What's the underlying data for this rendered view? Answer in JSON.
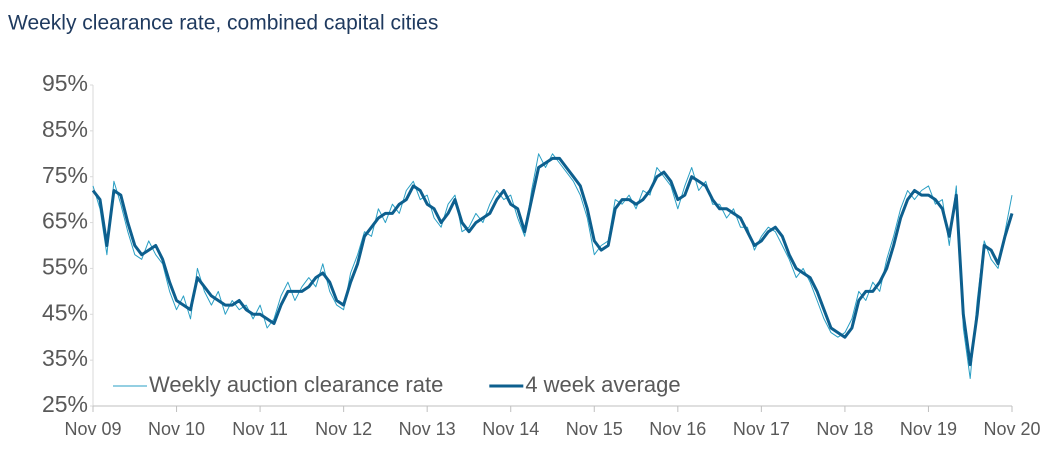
{
  "chart_data": {
    "type": "line",
    "title": "Weekly clearance rate, combined capital cities",
    "x": [
      "Nov 09",
      "Dec 09",
      "Jan 10",
      "Feb 10",
      "Mar 10",
      "Apr 10",
      "May 10",
      "Jun 10",
      "Jul 10",
      "Aug 10",
      "Sep 10",
      "Oct 10",
      "Nov 10",
      "Dec 10",
      "Jan 11",
      "Feb 11",
      "Mar 11",
      "Apr 11",
      "May 11",
      "Jun 11",
      "Jul 11",
      "Aug 11",
      "Sep 11",
      "Oct 11",
      "Nov 11",
      "Dec 11",
      "Jan 12",
      "Feb 12",
      "Mar 12",
      "Apr 12",
      "May 12",
      "Jun 12",
      "Jul 12",
      "Aug 12",
      "Sep 12",
      "Oct 12",
      "Nov 12",
      "Dec 12",
      "Jan 13",
      "Feb 13",
      "Mar 13",
      "Apr 13",
      "May 13",
      "Jun 13",
      "Jul 13",
      "Aug 13",
      "Sep 13",
      "Oct 13",
      "Nov 13",
      "Dec 13",
      "Jan 14",
      "Feb 14",
      "Mar 14",
      "Apr 14",
      "May 14",
      "Jun 14",
      "Jul 14",
      "Aug 14",
      "Sep 14",
      "Oct 14",
      "Nov 14",
      "Dec 14",
      "Jan 15",
      "Feb 15",
      "Mar 15",
      "Apr 15",
      "May 15",
      "Jun 15",
      "Jul 15",
      "Aug 15",
      "Sep 15",
      "Oct 15",
      "Nov 15",
      "Dec 15",
      "Jan 16",
      "Feb 16",
      "Mar 16",
      "Apr 16",
      "May 16",
      "Jun 16",
      "Jul 16",
      "Aug 16",
      "Sep 16",
      "Oct 16",
      "Nov 16",
      "Dec 16",
      "Jan 17",
      "Feb 17",
      "Mar 17",
      "Apr 17",
      "May 17",
      "Jun 17",
      "Jul 17",
      "Aug 17",
      "Sep 17",
      "Oct 17",
      "Nov 17",
      "Dec 17",
      "Jan 18",
      "Feb 18",
      "Mar 18",
      "Apr 18",
      "May 18",
      "Jun 18",
      "Jul 18",
      "Aug 18",
      "Sep 18",
      "Oct 18",
      "Nov 18",
      "Dec 18",
      "Jan 19",
      "Feb 19",
      "Mar 19",
      "Apr 19",
      "May 19",
      "Jun 19",
      "Jul 19",
      "Aug 19",
      "Sep 19",
      "Oct 19",
      "Nov 19",
      "Dec 19",
      "Jan 20",
      "Feb 20",
      "Mar 20",
      "Apr 20",
      "May 20",
      "Jun 20",
      "Jul 20",
      "Aug 20",
      "Sep 20",
      "Oct 20",
      "Nov 20"
    ],
    "series": [
      {
        "name": "Weekly auction clearance rate",
        "color": "#2a9fc4",
        "width": 1,
        "values": [
          73,
          68,
          58,
          74,
          69,
          63,
          58,
          57,
          61,
          58,
          56,
          50,
          46,
          49,
          44,
          55,
          50,
          47,
          50,
          45,
          48,
          46,
          47,
          44,
          47,
          42,
          44,
          49,
          52,
          48,
          51,
          53,
          51,
          56,
          50,
          47,
          46,
          54,
          58,
          63,
          62,
          68,
          65,
          69,
          67,
          72,
          74,
          70,
          71,
          66,
          64,
          69,
          71,
          63,
          64,
          67,
          65,
          69,
          72,
          70,
          71,
          66,
          62,
          72,
          80,
          77,
          80,
          78,
          76,
          74,
          71,
          66,
          58,
          60,
          61,
          70,
          69,
          71,
          68,
          72,
          71,
          77,
          75,
          73,
          68,
          73,
          77,
          72,
          74,
          69,
          69,
          66,
          68,
          64,
          64,
          59,
          62,
          64,
          63,
          60,
          57,
          53,
          55,
          52,
          48,
          44,
          41,
          40,
          41,
          44,
          50,
          48,
          52,
          50,
          57,
          62,
          68,
          72,
          70,
          72,
          73,
          69,
          70,
          60,
          73,
          42,
          31,
          48,
          61,
          57,
          55,
          63,
          71
        ]
      },
      {
        "name": "4 week average",
        "color": "#0d5f8e",
        "width": 3,
        "values": [
          72,
          70,
          60,
          72,
          71,
          65,
          60,
          58,
          59,
          60,
          57,
          52,
          48,
          47,
          46,
          53,
          51,
          49,
          48,
          47,
          47,
          48,
          46,
          45,
          45,
          44,
          43,
          47,
          50,
          50,
          50,
          51,
          53,
          54,
          52,
          48,
          47,
          52,
          56,
          62,
          64,
          66,
          67,
          67,
          69,
          70,
          73,
          72,
          69,
          68,
          65,
          67,
          70,
          65,
          63,
          65,
          66,
          67,
          70,
          72,
          69,
          68,
          63,
          70,
          77,
          78,
          79,
          79,
          77,
          75,
          73,
          68,
          61,
          59,
          60,
          68,
          70,
          70,
          69,
          70,
          72,
          75,
          76,
          74,
          70,
          71,
          75,
          74,
          73,
          70,
          68,
          68,
          67,
          66,
          63,
          60,
          61,
          63,
          64,
          62,
          58,
          55,
          54,
          53,
          50,
          46,
          42,
          41,
          40,
          42,
          48,
          50,
          50,
          52,
          55,
          60,
          66,
          70,
          72,
          71,
          71,
          70,
          68,
          62,
          71,
          45,
          34,
          45,
          60,
          59,
          56,
          62,
          67
        ]
      }
    ],
    "ylim": [
      25,
      95
    ],
    "yticks": [
      {
        "value": 25,
        "label": "25%"
      },
      {
        "value": 35,
        "label": "35%"
      },
      {
        "value": 45,
        "label": "45%"
      },
      {
        "value": 55,
        "label": "55%"
      },
      {
        "value": 65,
        "label": "65%"
      },
      {
        "value": 75,
        "label": "75%"
      },
      {
        "value": 85,
        "label": "85%"
      },
      {
        "value": 95,
        "label": "95%"
      }
    ],
    "xticks": [
      "Nov 09",
      "Nov 10",
      "Nov 11",
      "Nov 12",
      "Nov 13",
      "Nov 14",
      "Nov 15",
      "Nov 16",
      "Nov 17",
      "Nov 18",
      "Nov 19",
      "Nov 20"
    ],
    "grid": false,
    "legend": "bottom-left"
  }
}
